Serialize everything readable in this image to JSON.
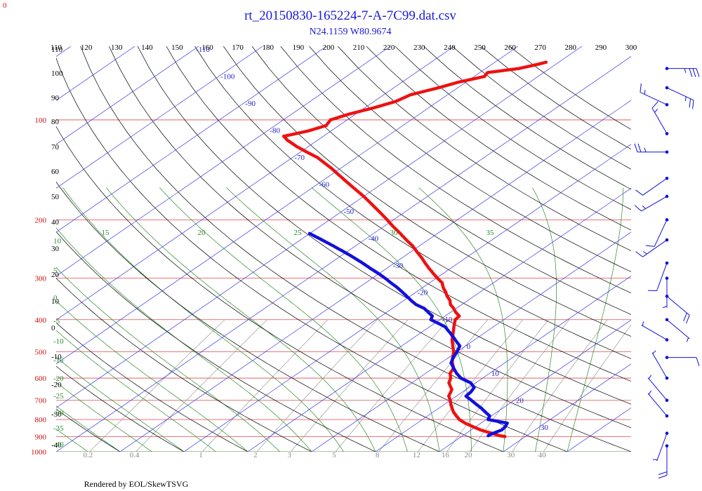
{
  "corner_label": "0",
  "footer": "Rendered by EOL/SkewTSVG",
  "chart_data": {
    "type": "scatter",
    "title": "rt_20150830-165224-7-A-7C99.dat.csv",
    "subtitle": "N24.1159 W80.9674",
    "top_ticks": [
      "110",
      "120",
      "130",
      "140",
      "150",
      "160",
      "170",
      "180",
      "190",
      "200",
      "210",
      "220",
      "230",
      "240",
      "250",
      "260",
      "270",
      "280",
      "290",
      "300"
    ],
    "pressure_levels": [
      100,
      200,
      300,
      400,
      500,
      600,
      700,
      800,
      900,
      1000
    ],
    "pressure_labels": [
      "100",
      "200",
      "300",
      "400",
      "500",
      "600",
      "700",
      "800",
      "900",
      "1000"
    ],
    "pressure_range": [
      60,
      1000
    ],
    "temp_range_at_base": [
      -40,
      50
    ],
    "isotherm_labels": [
      "-110",
      "-100",
      "-90",
      "-80",
      "-70",
      "-60",
      "-50",
      "-40",
      "-30",
      "-20",
      "-10",
      "0",
      "10",
      "20",
      "30"
    ],
    "dry_adiabat_labels": [
      "110",
      "100",
      "90",
      "80",
      "70",
      "60",
      "50",
      "40",
      "30",
      "20",
      "10",
      "0",
      "-10",
      "-20",
      "-30",
      "-40"
    ],
    "moist_adiabat_labels": [
      "10",
      "5",
      "0",
      "-5",
      "-10",
      "-15",
      "-20",
      "-25",
      "-30",
      "-35",
      "-40"
    ],
    "moist_adiabat_top_labels": [
      "15",
      "20",
      "25",
      "30",
      "35"
    ],
    "mixing_ratio_labels": [
      "0.2",
      "0.4",
      "1",
      "2",
      "3",
      "5",
      "8",
      "12",
      "16",
      "20",
      "30",
      "40"
    ],
    "colors": {
      "title": "#1a1ad9",
      "isobar": "#e24a4a",
      "isotherm": "#3a3ae0",
      "dry_adiabat": "#000000",
      "moist_adiabat": "#2a8a2a",
      "mixing_ratio": "#8a8a8a",
      "temperature": "#ee1111",
      "dewpoint": "#1010dd",
      "wind_barb": "#1010dd"
    },
    "series": [
      {
        "name": "",
        "points": [
          [
            900,
            26.8
          ],
          [
            895,
            25.8
          ],
          [
            880,
            24.0
          ],
          [
            860,
            21.5
          ],
          [
            840,
            19.5
          ],
          [
            820,
            17.5
          ],
          [
            800,
            15.8
          ],
          [
            780,
            14.5
          ],
          [
            760,
            13.2
          ],
          [
            740,
            12.1
          ],
          [
            720,
            11.0
          ],
          [
            700,
            10.0
          ],
          [
            680,
            8.8
          ],
          [
            650,
            7.8
          ],
          [
            620,
            5.8
          ],
          [
            600,
            5.0
          ],
          [
            580,
            3.8
          ],
          [
            560,
            3.2
          ],
          [
            540,
            1.8
          ],
          [
            520,
            0.6
          ],
          [
            500,
            -0.5
          ],
          [
            480,
            -2.0
          ],
          [
            460,
            -3.5
          ],
          [
            440,
            -4.8
          ],
          [
            420,
            -6.2
          ],
          [
            400,
            -7.6
          ],
          [
            390,
            -7.8
          ],
          [
            380,
            -9.2
          ],
          [
            370,
            -10.4
          ],
          [
            360,
            -11.8
          ],
          [
            350,
            -12.8
          ],
          [
            340,
            -14.2
          ],
          [
            330,
            -15.4
          ],
          [
            320,
            -16.8
          ],
          [
            310,
            -18.0
          ],
          [
            300,
            -19.8
          ],
          [
            290,
            -21.6
          ],
          [
            280,
            -23.4
          ],
          [
            270,
            -25.2
          ],
          [
            260,
            -27.0
          ],
          [
            250,
            -29.0
          ],
          [
            240,
            -31.0
          ],
          [
            230,
            -33.4
          ],
          [
            220,
            -35.8
          ],
          [
            210,
            -38.4
          ],
          [
            200,
            -41.0
          ],
          [
            190,
            -43.8
          ],
          [
            180,
            -46.8
          ],
          [
            170,
            -50.0
          ],
          [
            160,
            -53.6
          ],
          [
            150,
            -57.4
          ],
          [
            140,
            -61.4
          ],
          [
            130,
            -66.0
          ],
          [
            125,
            -69.0
          ],
          [
            120,
            -72.0
          ],
          [
            115,
            -74.8
          ],
          [
            112,
            -76.2
          ],
          [
            108,
            -73.6
          ],
          [
            104,
            -72.0
          ],
          [
            100,
            -72.6
          ],
          [
            96,
            -71.0
          ],
          [
            92,
            -68.6
          ],
          [
            88,
            -66.6
          ],
          [
            84,
            -65.8
          ],
          [
            80,
            -63.0
          ],
          [
            77,
            -61.2
          ],
          [
            74,
            -58.4
          ],
          [
            72,
            -58.8
          ],
          [
            70,
            -54.8
          ],
          [
            68,
            -52.8
          ],
          [
            67,
            -52.0
          ]
        ]
      },
      {
        "name": "",
        "points": [
          [
            895,
            24.0
          ],
          [
            880,
            24.2
          ],
          [
            860,
            24.8
          ],
          [
            840,
            24.6
          ],
          [
            820,
            24.1
          ],
          [
            800,
            20.3
          ],
          [
            780,
            19.7
          ],
          [
            760,
            18.2
          ],
          [
            740,
            16.7
          ],
          [
            720,
            15.0
          ],
          [
            700,
            13.3
          ],
          [
            680,
            11.5
          ],
          [
            660,
            11.3
          ],
          [
            640,
            10.8
          ],
          [
            620,
            9.2
          ],
          [
            600,
            6.6
          ],
          [
            580,
            4.8
          ],
          [
            560,
            3.2
          ],
          [
            540,
            1.6
          ],
          [
            520,
            0.7
          ],
          [
            500,
            0.0
          ],
          [
            480,
            -0.9
          ],
          [
            460,
            -3.0
          ],
          [
            440,
            -5.2
          ],
          [
            420,
            -7.6
          ],
          [
            400,
            -11.4
          ],
          [
            390,
            -12.0
          ],
          [
            380,
            -13.5
          ],
          [
            370,
            -15.0
          ],
          [
            360,
            -17.2
          ],
          [
            350,
            -18.9
          ],
          [
            340,
            -20.5
          ],
          [
            330,
            -22.2
          ],
          [
            320,
            -24.0
          ],
          [
            310,
            -26.0
          ],
          [
            300,
            -28.0
          ],
          [
            290,
            -30.2
          ],
          [
            280,
            -32.6
          ],
          [
            270,
            -35.0
          ],
          [
            260,
            -37.6
          ],
          [
            250,
            -40.4
          ],
          [
            240,
            -43.4
          ],
          [
            230,
            -46.6
          ],
          [
            220,
            -50.0
          ]
        ]
      }
    ],
    "wind_barbs": [
      {
        "pressure": 70,
        "direction": 90,
        "speed": 35
      },
      {
        "pressure": 80,
        "direction": 115,
        "speed": 25
      },
      {
        "pressure": 90,
        "direction": 295,
        "speed": 15
      },
      {
        "pressure": 110,
        "direction": 330,
        "speed": 15
      },
      {
        "pressure": 125,
        "direction": 270,
        "speed": 25
      },
      {
        "pressure": 150,
        "direction": 235,
        "speed": 10
      },
      {
        "pressure": 170,
        "direction": 240,
        "speed": 15
      },
      {
        "pressure": 200,
        "direction": 205,
        "speed": 10
      },
      {
        "pressure": 230,
        "direction": 235,
        "speed": 15
      },
      {
        "pressure": 270,
        "direction": 200,
        "speed": 10
      },
      {
        "pressure": 300,
        "direction": 180,
        "speed": 5
      },
      {
        "pressure": 340,
        "direction": 130,
        "speed": 20
      },
      {
        "pressure": 400,
        "direction": 130,
        "speed": 5
      },
      {
        "pressure": 460,
        "direction": 300,
        "speed": 5
      },
      {
        "pressure": 520,
        "direction": 90,
        "speed": 10
      },
      {
        "pressure": 600,
        "direction": 330,
        "speed": 5
      },
      {
        "pressure": 700,
        "direction": 320,
        "speed": 5
      },
      {
        "pressure": 780,
        "direction": 320,
        "speed": 5
      },
      {
        "pressure": 880,
        "direction": 200,
        "speed": 5
      },
      {
        "pressure": 960,
        "direction": 180,
        "speed": 20
      }
    ]
  }
}
